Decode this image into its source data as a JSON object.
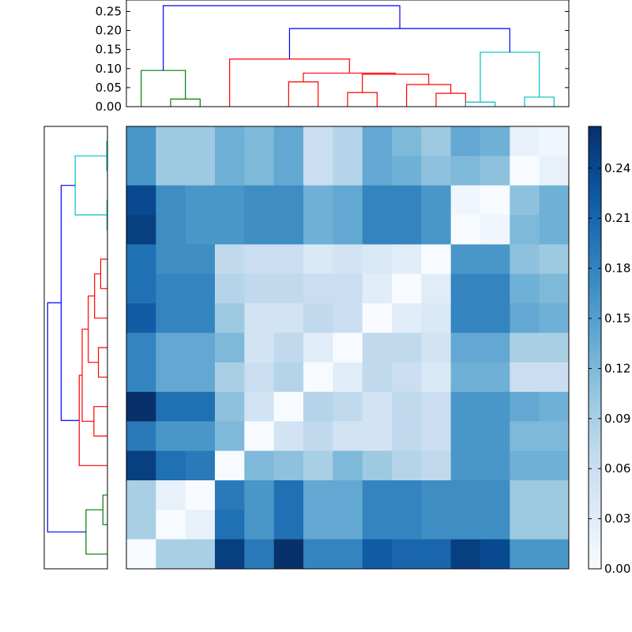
{
  "chart_data": [
    {
      "type": "dendrogram",
      "name": "top-dendrogram",
      "orientation": "top",
      "ylim": [
        0,
        0.28
      ],
      "yticks": [
        0.0,
        0.05,
        0.1,
        0.15,
        0.2,
        0.25
      ],
      "ytick_labels": [
        "0.00",
        "0.05",
        "0.10",
        "0.15",
        "0.20",
        "0.25"
      ],
      "leaf_count": 15,
      "links": [
        {
          "a": 1.5,
          "b": 2.5,
          "h": 0.02,
          "color": "#008000"
        },
        {
          "a": 0.5,
          "b": 2.0,
          "h": 0.095,
          "color": "#008000"
        },
        {
          "a": 5.5,
          "b": 6.5,
          "h": 0.065,
          "color": "#ff0000"
        },
        {
          "a": 7.5,
          "b": 8.5,
          "h": 0.037,
          "color": "#ff0000"
        },
        {
          "a": 10.5,
          "b": 11.5,
          "h": 0.035,
          "color": "#ff0000"
        },
        {
          "a": 9.5,
          "b": 11.0,
          "h": 0.058,
          "color": "#ff0000"
        },
        {
          "a": 8.0,
          "b": 10.25,
          "h": 0.085,
          "color": "#ff0000"
        },
        {
          "a": 6.0,
          "b": 9.125,
          "h": 0.088,
          "color": "#ff0000"
        },
        {
          "a": 3.5,
          "b": 7.5625,
          "h": 0.125,
          "color": "#ff0000"
        },
        {
          "a": 11.5,
          "b": 12.5,
          "h": 0.012,
          "color": "#00bfbf"
        },
        {
          "a": 13.5,
          "b": 14.5,
          "h": 0.025,
          "color": "#00bfbf"
        },
        {
          "a": 12.0,
          "b": 14.0,
          "h": 0.143,
          "color": "#00bfbf"
        },
        {
          "a": 5.53,
          "b": 13.0,
          "h": 0.205,
          "color": "#0000ff"
        },
        {
          "a": 1.25,
          "b": 9.27,
          "h": 0.265,
          "color": "#0000ff"
        }
      ]
    },
    {
      "type": "dendrogram",
      "name": "left-dendrogram",
      "orientation": "left",
      "xlim": [
        0,
        0.28
      ],
      "leaf_count": 15,
      "links": [
        {
          "a": 0.5,
          "b": 1.5,
          "h": 0.003,
          "color": "#00bfbf"
        },
        {
          "a": 2.5,
          "b": 3.5,
          "h": 0.002,
          "color": "#00bfbf"
        },
        {
          "a": 1.0,
          "b": 3.0,
          "h": 0.143,
          "color": "#00bfbf"
        },
        {
          "a": 4.5,
          "b": 5.5,
          "h": 0.03,
          "color": "#ff0000"
        },
        {
          "a": 5.0,
          "b": 6.5,
          "h": 0.057,
          "color": "#ff0000"
        },
        {
          "a": 7.5,
          "b": 8.5,
          "h": 0.04,
          "color": "#ff0000"
        },
        {
          "a": 9.5,
          "b": 10.5,
          "h": 0.06,
          "color": "#ff0000"
        },
        {
          "a": 5.75,
          "b": 8.0,
          "h": 0.085,
          "color": "#ff0000"
        },
        {
          "a": 6.875,
          "b": 10.0,
          "h": 0.112,
          "color": "#ff0000"
        },
        {
          "a": 8.44,
          "b": 11.5,
          "h": 0.125,
          "color": "#ff0000"
        },
        {
          "a": 12.5,
          "b": 13.5,
          "h": 0.02,
          "color": "#008000"
        },
        {
          "a": 13.0,
          "b": 14.5,
          "h": 0.095,
          "color": "#008000"
        },
        {
          "a": 2.0,
          "b": 9.97,
          "h": 0.205,
          "color": "#0000ff"
        },
        {
          "a": 5.98,
          "b": 13.75,
          "h": 0.265,
          "color": "#0000ff"
        }
      ]
    },
    {
      "type": "heatmap",
      "name": "distance-heatmap",
      "colormap": "Blues",
      "vmin": 0,
      "vmax": 0.265,
      "rows": 15,
      "cols": 15,
      "values": [
        [
          0.16,
          0.1,
          0.1,
          0.13,
          0.12,
          0.14,
          0.06,
          0.08,
          0.14,
          0.12,
          0.1,
          0.14,
          0.13,
          0.02,
          0.01
        ],
        [
          0.16,
          0.1,
          0.1,
          0.13,
          0.12,
          0.14,
          0.06,
          0.08,
          0.14,
          0.13,
          0.11,
          0.12,
          0.11,
          0.0,
          0.02
        ],
        [
          0.24,
          0.17,
          0.16,
          0.16,
          0.17,
          0.17,
          0.13,
          0.14,
          0.18,
          0.18,
          0.16,
          0.01,
          0.0,
          0.11,
          0.13
        ],
        [
          0.25,
          0.17,
          0.16,
          0.16,
          0.17,
          0.17,
          0.13,
          0.14,
          0.18,
          0.18,
          0.16,
          0.0,
          0.01,
          0.12,
          0.13
        ],
        [
          0.2,
          0.17,
          0.17,
          0.07,
          0.06,
          0.06,
          0.04,
          0.05,
          0.04,
          0.03,
          0.0,
          0.16,
          0.16,
          0.11,
          0.1
        ],
        [
          0.2,
          0.18,
          0.18,
          0.08,
          0.07,
          0.07,
          0.06,
          0.06,
          0.03,
          0.0,
          0.03,
          0.18,
          0.18,
          0.13,
          0.12
        ],
        [
          0.22,
          0.18,
          0.18,
          0.1,
          0.05,
          0.05,
          0.07,
          0.06,
          0.0,
          0.03,
          0.04,
          0.18,
          0.18,
          0.14,
          0.13
        ],
        [
          0.18,
          0.14,
          0.14,
          0.12,
          0.05,
          0.07,
          0.03,
          0.0,
          0.07,
          0.07,
          0.05,
          0.14,
          0.14,
          0.09,
          0.09
        ],
        [
          0.18,
          0.14,
          0.14,
          0.09,
          0.06,
          0.08,
          0.0,
          0.03,
          0.07,
          0.06,
          0.04,
          0.13,
          0.13,
          0.06,
          0.06
        ],
        [
          0.265,
          0.2,
          0.2,
          0.11,
          0.05,
          0.0,
          0.08,
          0.07,
          0.05,
          0.07,
          0.06,
          0.16,
          0.16,
          0.14,
          0.13
        ],
        [
          0.19,
          0.16,
          0.16,
          0.12,
          0.0,
          0.05,
          0.07,
          0.05,
          0.05,
          0.07,
          0.06,
          0.16,
          0.16,
          0.12,
          0.12
        ],
        [
          0.25,
          0.2,
          0.19,
          0.0,
          0.12,
          0.11,
          0.09,
          0.12,
          0.1,
          0.08,
          0.07,
          0.16,
          0.16,
          0.13,
          0.13
        ],
        [
          0.09,
          0.02,
          0.0,
          0.19,
          0.16,
          0.2,
          0.14,
          0.14,
          0.18,
          0.18,
          0.17,
          0.17,
          0.17,
          0.1,
          0.1
        ],
        [
          0.09,
          0.0,
          0.02,
          0.2,
          0.16,
          0.2,
          0.14,
          0.14,
          0.18,
          0.18,
          0.17,
          0.17,
          0.17,
          0.1,
          0.1
        ],
        [
          0.0,
          0.09,
          0.09,
          0.25,
          0.19,
          0.265,
          0.18,
          0.18,
          0.22,
          0.21,
          0.21,
          0.25,
          0.24,
          0.16,
          0.16
        ]
      ]
    },
    {
      "type": "colorbar",
      "name": "colorbar",
      "range": [
        0,
        0.265
      ],
      "ticks": [
        0.0,
        0.03,
        0.06,
        0.09,
        0.12,
        0.15,
        0.18,
        0.21,
        0.24
      ],
      "tick_labels": [
        "0.00",
        "0.03",
        "0.06",
        "0.09",
        "0.12",
        "0.15",
        "0.18",
        "0.21",
        "0.24"
      ]
    }
  ]
}
